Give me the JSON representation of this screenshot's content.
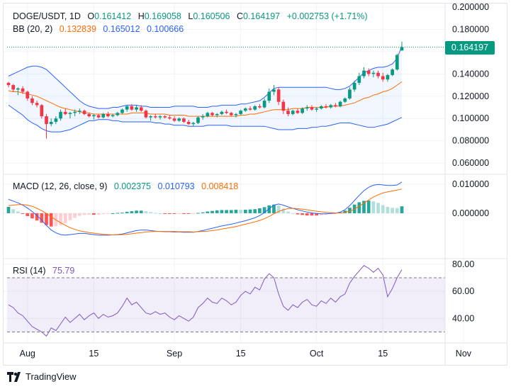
{
  "header": {
    "symbol": "DOGE/USDT, 1D",
    "o_label": "O",
    "o": "0.161412",
    "h_label": "H",
    "h": "0.169058",
    "l_label": "L",
    "l": "0.160506",
    "c_label": "C",
    "c": "0.164197",
    "change": "+0.002753 (+1.71%)",
    "bb_label": "BB (20, 2)",
    "bb_basis": "0.132839",
    "bb_upper": "0.165012",
    "bb_lower": "0.100666",
    "macd_label": "MACD (12, 26, close, 9)",
    "macd_hist": "0.002375",
    "macd_line": "0.010793",
    "macd_signal": "0.008418",
    "rsi_label": "RSI (14)",
    "rsi_value": "75.79",
    "price_tag": "0.164197"
  },
  "brand": {
    "name": "TradingView"
  },
  "colors": {
    "up": "#089981",
    "down": "#f23645",
    "bb_band": "#2962ff",
    "bb_basis": "#ff6d00",
    "macd": "#2962ff",
    "signal": "#ff6d00",
    "rsi": "#7e57c2"
  },
  "chart_data": [
    {
      "type": "candlestick",
      "panel": "price",
      "x_ticks": [
        "Aug",
        "15",
        "Sep",
        "15",
        "Oct",
        "15",
        "Nov"
      ],
      "y_ticks": [
        "0.060000",
        "0.080000",
        "0.100000",
        "0.120000",
        "0.140000",
        "0.160000",
        "0.180000",
        "0.200000"
      ],
      "ylim": [
        0.055,
        0.2
      ],
      "ohlc": [
        [
          0.132,
          0.133,
          0.128,
          0.13
        ],
        [
          0.13,
          0.131,
          0.124,
          0.126
        ],
        [
          0.126,
          0.128,
          0.121,
          0.127
        ],
        [
          0.127,
          0.129,
          0.122,
          0.124
        ],
        [
          0.124,
          0.125,
          0.116,
          0.118
        ],
        [
          0.118,
          0.12,
          0.112,
          0.114
        ],
        [
          0.114,
          0.116,
          0.11,
          0.112
        ],
        [
          0.112,
          0.113,
          0.1,
          0.102
        ],
        [
          0.102,
          0.104,
          0.082,
          0.095
        ],
        [
          0.095,
          0.1,
          0.093,
          0.097
        ],
        [
          0.097,
          0.102,
          0.095,
          0.1
        ],
        [
          0.1,
          0.108,
          0.098,
          0.106
        ],
        [
          0.106,
          0.109,
          0.103,
          0.104
        ],
        [
          0.104,
          0.106,
          0.1,
          0.105
        ],
        [
          0.105,
          0.108,
          0.102,
          0.106
        ],
        [
          0.106,
          0.109,
          0.104,
          0.107
        ],
        [
          0.107,
          0.108,
          0.103,
          0.104
        ],
        [
          0.104,
          0.105,
          0.101,
          0.102
        ],
        [
          0.102,
          0.104,
          0.099,
          0.103
        ],
        [
          0.103,
          0.104,
          0.1,
          0.101
        ],
        [
          0.101,
          0.105,
          0.1,
          0.104
        ],
        [
          0.104,
          0.106,
          0.101,
          0.102
        ],
        [
          0.102,
          0.104,
          0.101,
          0.103
        ],
        [
          0.103,
          0.106,
          0.102,
          0.105
        ],
        [
          0.105,
          0.109,
          0.104,
          0.108
        ],
        [
          0.108,
          0.112,
          0.106,
          0.111
        ],
        [
          0.111,
          0.113,
          0.107,
          0.108
        ],
        [
          0.108,
          0.112,
          0.106,
          0.11
        ],
        [
          0.11,
          0.112,
          0.106,
          0.107
        ],
        [
          0.107,
          0.108,
          0.1,
          0.101
        ],
        [
          0.101,
          0.103,
          0.098,
          0.102
        ],
        [
          0.102,
          0.104,
          0.1,
          0.101
        ],
        [
          0.101,
          0.103,
          0.099,
          0.102
        ],
        [
          0.102,
          0.103,
          0.1,
          0.101
        ],
        [
          0.101,
          0.103,
          0.099,
          0.1
        ],
        [
          0.1,
          0.102,
          0.097,
          0.098
        ],
        [
          0.098,
          0.101,
          0.097,
          0.1
        ],
        [
          0.1,
          0.101,
          0.096,
          0.097
        ],
        [
          0.097,
          0.099,
          0.094,
          0.095
        ],
        [
          0.095,
          0.097,
          0.093,
          0.096
        ],
        [
          0.096,
          0.102,
          0.095,
          0.101
        ],
        [
          0.101,
          0.104,
          0.099,
          0.102
        ],
        [
          0.102,
          0.106,
          0.101,
          0.105
        ],
        [
          0.105,
          0.106,
          0.102,
          0.103
        ],
        [
          0.103,
          0.105,
          0.101,
          0.104
        ],
        [
          0.104,
          0.107,
          0.103,
          0.106
        ],
        [
          0.106,
          0.108,
          0.104,
          0.105
        ],
        [
          0.105,
          0.106,
          0.102,
          0.103
        ],
        [
          0.103,
          0.105,
          0.101,
          0.104
        ],
        [
          0.104,
          0.108,
          0.103,
          0.107
        ],
        [
          0.107,
          0.11,
          0.106,
          0.109
        ],
        [
          0.109,
          0.111,
          0.107,
          0.108
        ],
        [
          0.108,
          0.112,
          0.107,
          0.111
        ],
        [
          0.111,
          0.113,
          0.109,
          0.11
        ],
        [
          0.11,
          0.118,
          0.109,
          0.116
        ],
        [
          0.116,
          0.127,
          0.114,
          0.124
        ],
        [
          0.124,
          0.13,
          0.121,
          0.126
        ],
        [
          0.126,
          0.128,
          0.112,
          0.115
        ],
        [
          0.115,
          0.117,
          0.104,
          0.107
        ],
        [
          0.107,
          0.11,
          0.102,
          0.104
        ],
        [
          0.104,
          0.108,
          0.103,
          0.107
        ],
        [
          0.107,
          0.109,
          0.104,
          0.105
        ],
        [
          0.105,
          0.11,
          0.104,
          0.109
        ],
        [
          0.109,
          0.112,
          0.107,
          0.11
        ],
        [
          0.11,
          0.112,
          0.107,
          0.108
        ],
        [
          0.108,
          0.11,
          0.106,
          0.109
        ],
        [
          0.109,
          0.112,
          0.108,
          0.111
        ],
        [
          0.111,
          0.113,
          0.109,
          0.11
        ],
        [
          0.11,
          0.113,
          0.109,
          0.112
        ],
        [
          0.112,
          0.114,
          0.11,
          0.111
        ],
        [
          0.111,
          0.116,
          0.11,
          0.115
        ],
        [
          0.115,
          0.119,
          0.114,
          0.118
        ],
        [
          0.118,
          0.128,
          0.117,
          0.126
        ],
        [
          0.126,
          0.134,
          0.124,
          0.132
        ],
        [
          0.132,
          0.141,
          0.13,
          0.138
        ],
        [
          0.138,
          0.146,
          0.136,
          0.143
        ],
        [
          0.143,
          0.145,
          0.138,
          0.14
        ],
        [
          0.14,
          0.143,
          0.137,
          0.141
        ],
        [
          0.141,
          0.143,
          0.136,
          0.138
        ],
        [
          0.138,
          0.141,
          0.133,
          0.135
        ],
        [
          0.135,
          0.14,
          0.133,
          0.139
        ],
        [
          0.139,
          0.145,
          0.138,
          0.144
        ],
        [
          0.144,
          0.158,
          0.143,
          0.157
        ],
        [
          0.161,
          0.169,
          0.161,
          0.164
        ]
      ],
      "bb_upper": [
        0.138,
        0.14,
        0.142,
        0.144,
        0.146,
        0.147,
        0.147,
        0.146,
        0.144,
        0.14,
        0.136,
        0.132,
        0.128,
        0.124,
        0.12,
        0.116,
        0.113,
        0.111,
        0.11,
        0.109,
        0.109,
        0.109,
        0.11,
        0.11,
        0.111,
        0.112,
        0.112,
        0.112,
        0.111,
        0.111,
        0.11,
        0.11,
        0.11,
        0.11,
        0.11,
        0.111,
        0.111,
        0.111,
        0.111,
        0.111,
        0.11,
        0.11,
        0.11,
        0.111,
        0.111,
        0.112,
        0.112,
        0.112,
        0.112,
        0.113,
        0.113,
        0.114,
        0.115,
        0.116,
        0.119,
        0.123,
        0.127,
        0.128,
        0.128,
        0.128,
        0.128,
        0.128,
        0.128,
        0.128,
        0.128,
        0.128,
        0.128,
        0.128,
        0.127,
        0.126,
        0.126,
        0.127,
        0.129,
        0.133,
        0.137,
        0.141,
        0.143,
        0.145,
        0.146,
        0.146,
        0.147,
        0.149,
        0.154,
        0.165
      ],
      "bb_basis": [
        0.125,
        0.124,
        0.124,
        0.123,
        0.122,
        0.121,
        0.12,
        0.118,
        0.116,
        0.114,
        0.112,
        0.11,
        0.109,
        0.108,
        0.107,
        0.106,
        0.105,
        0.105,
        0.104,
        0.104,
        0.104,
        0.104,
        0.104,
        0.104,
        0.104,
        0.104,
        0.105,
        0.105,
        0.105,
        0.105,
        0.104,
        0.104,
        0.104,
        0.104,
        0.103,
        0.103,
        0.103,
        0.103,
        0.102,
        0.102,
        0.102,
        0.102,
        0.102,
        0.102,
        0.102,
        0.102,
        0.102,
        0.102,
        0.102,
        0.103,
        0.103,
        0.104,
        0.104,
        0.105,
        0.106,
        0.107,
        0.108,
        0.108,
        0.108,
        0.108,
        0.109,
        0.109,
        0.109,
        0.11,
        0.11,
        0.11,
        0.11,
        0.11,
        0.111,
        0.111,
        0.111,
        0.112,
        0.113,
        0.114,
        0.116,
        0.118,
        0.119,
        0.121,
        0.122,
        0.124,
        0.125,
        0.127,
        0.13,
        0.133
      ],
      "bb_lower": [
        0.112,
        0.109,
        0.106,
        0.103,
        0.099,
        0.096,
        0.094,
        0.091,
        0.089,
        0.088,
        0.088,
        0.088,
        0.089,
        0.09,
        0.092,
        0.094,
        0.096,
        0.098,
        0.098,
        0.099,
        0.099,
        0.099,
        0.098,
        0.098,
        0.097,
        0.097,
        0.097,
        0.097,
        0.097,
        0.097,
        0.097,
        0.096,
        0.096,
        0.095,
        0.095,
        0.094,
        0.094,
        0.094,
        0.093,
        0.093,
        0.093,
        0.093,
        0.094,
        0.094,
        0.094,
        0.094,
        0.094,
        0.093,
        0.093,
        0.093,
        0.093,
        0.093,
        0.093,
        0.093,
        0.093,
        0.092,
        0.091,
        0.09,
        0.09,
        0.09,
        0.09,
        0.091,
        0.091,
        0.091,
        0.092,
        0.092,
        0.093,
        0.093,
        0.094,
        0.095,
        0.096,
        0.096,
        0.096,
        0.095,
        0.094,
        0.093,
        0.092,
        0.092,
        0.093,
        0.094,
        0.095,
        0.097,
        0.099,
        0.101
      ]
    },
    {
      "type": "macd",
      "panel": "macd",
      "y_ticks": [
        "0.000000",
        "0.010000"
      ],
      "ylim": [
        -0.0145,
        0.0125
      ],
      "macd": [
        0.0048,
        0.0042,
        0.0036,
        0.0028,
        0.0018,
        0.0006,
        -0.0008,
        -0.0024,
        -0.0042,
        -0.0058,
        -0.0068,
        -0.0074,
        -0.0076,
        -0.0074,
        -0.0072,
        -0.007,
        -0.007,
        -0.0072,
        -0.0074,
        -0.0076,
        -0.0076,
        -0.0076,
        -0.0075,
        -0.0074,
        -0.0072,
        -0.0068,
        -0.0064,
        -0.006,
        -0.0058,
        -0.0058,
        -0.006,
        -0.0062,
        -0.0063,
        -0.0064,
        -0.0064,
        -0.0065,
        -0.0065,
        -0.0066,
        -0.0066,
        -0.0066,
        -0.0063,
        -0.006,
        -0.0056,
        -0.0052,
        -0.0048,
        -0.0044,
        -0.0041,
        -0.0038,
        -0.0034,
        -0.003,
        -0.0026,
        -0.0021,
        -0.0016,
        -0.0008,
        0.0002,
        0.0016,
        0.0028,
        0.0032,
        0.0028,
        0.0022,
        0.0017,
        0.0012,
        0.0008,
        0.0004,
        0.0001,
        -0.0001,
        -0.0002,
        -0.0002,
        -0.0001,
        0.0,
        0.0004,
        0.0012,
        0.0026,
        0.0044,
        0.0062,
        0.0078,
        0.009,
        0.0097,
        0.01,
        0.0098,
        0.0096,
        0.0096,
        0.0098,
        0.0108
      ],
      "signal": [
        0.0026,
        0.0028,
        0.003,
        0.003,
        0.0028,
        0.0024,
        0.0017,
        0.0009,
        -0.0001,
        -0.0012,
        -0.0023,
        -0.0033,
        -0.0042,
        -0.005,
        -0.0056,
        -0.0061,
        -0.0064,
        -0.0067,
        -0.0069,
        -0.0071,
        -0.0073,
        -0.0074,
        -0.0075,
        -0.0075,
        -0.0074,
        -0.0073,
        -0.0071,
        -0.0069,
        -0.0067,
        -0.0065,
        -0.0064,
        -0.0063,
        -0.0063,
        -0.0063,
        -0.0063,
        -0.0063,
        -0.0064,
        -0.0064,
        -0.0064,
        -0.0065,
        -0.0064,
        -0.0063,
        -0.0062,
        -0.006,
        -0.0058,
        -0.0055,
        -0.0052,
        -0.0049,
        -0.0046,
        -0.0042,
        -0.0038,
        -0.0034,
        -0.003,
        -0.0025,
        -0.0019,
        -0.0011,
        -0.0002,
        0.0006,
        0.0012,
        0.0016,
        0.0017,
        0.0016,
        0.0014,
        0.0012,
        0.0009,
        0.0007,
        0.0005,
        0.0003,
        0.0002,
        0.0001,
        0.0001,
        0.0003,
        0.0007,
        0.0014,
        0.0024,
        0.0035,
        0.0046,
        0.0056,
        0.0064,
        0.007,
        0.0074,
        0.0077,
        0.008,
        0.0084
      ]
    },
    {
      "type": "line",
      "panel": "rsi",
      "y_ticks": [
        "40.00",
        "60.00",
        "80.00"
      ],
      "ylim": [
        24,
        82
      ],
      "bands": [
        30,
        70
      ],
      "values": [
        50,
        48,
        44,
        42,
        38,
        34,
        32,
        30,
        27,
        33,
        31,
        36,
        41,
        37,
        40,
        43,
        39,
        42,
        44,
        40,
        43,
        41,
        42,
        44,
        49,
        55,
        50,
        52,
        48,
        44,
        43,
        45,
        43,
        44,
        41,
        39,
        42,
        40,
        38,
        41,
        48,
        51,
        55,
        52,
        51,
        55,
        53,
        50,
        52,
        57,
        60,
        58,
        63,
        61,
        69,
        73,
        70,
        58,
        49,
        46,
        50,
        48,
        52,
        54,
        50,
        49,
        53,
        51,
        55,
        52,
        56,
        58,
        66,
        71,
        75,
        79,
        77,
        74,
        77,
        72,
        56,
        62,
        70,
        76
      ]
    }
  ]
}
